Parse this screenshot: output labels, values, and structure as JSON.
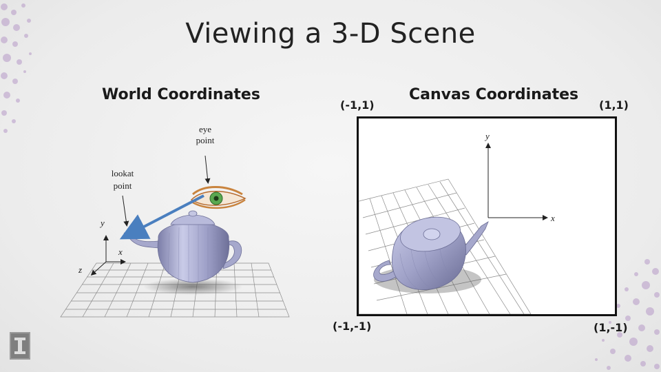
{
  "slide": {
    "title": "Viewing a 3-D Scene"
  },
  "world": {
    "heading": "World Coordinates",
    "eye_label_1": "eye",
    "eye_label_2": "point",
    "lookat_label_1": "lookat",
    "lookat_label_2": "point",
    "axis_y": "y",
    "axis_x": "x",
    "axis_z": "z"
  },
  "canvas": {
    "heading": "Canvas Coordinates",
    "corner_top_left": "(-1,1)",
    "corner_top_right": "(1,1)",
    "corner_bottom_left": "(-1,-1)",
    "corner_bottom_right": "(1,-1)",
    "axis_y": "y",
    "axis_x": "x"
  },
  "colors": {
    "arrow": "#4a7fbf",
    "teapot": "#a6a8cc",
    "grid": "#8a8a8a",
    "dots": "#b79ac8"
  }
}
